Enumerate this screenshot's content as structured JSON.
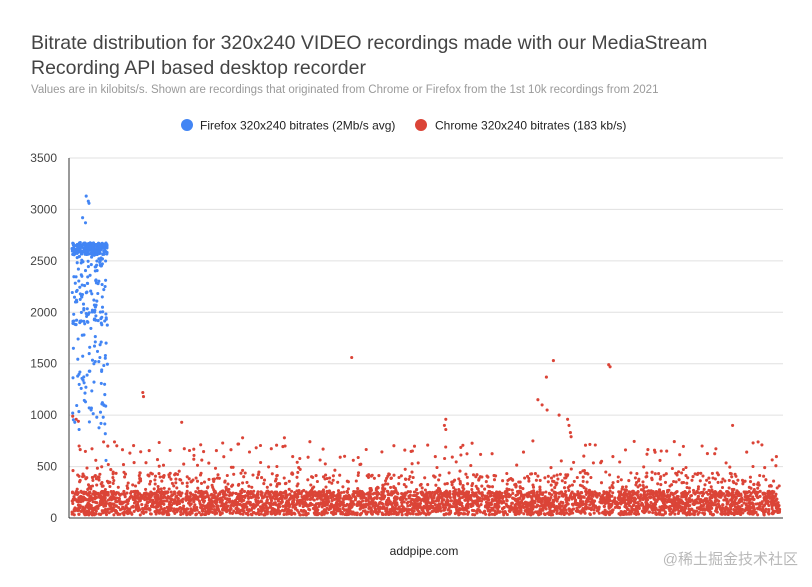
{
  "chart_data": {
    "type": "scatter",
    "title": "Bitrate distribution for 320x240 VIDEO recordings made with our MediaStream Recording API based desktop recorder",
    "subtitle": "Values are in kilobits/s. Shown are recordings that originated from Chrome or Firefox from the 1st 10k recordings from 2021",
    "xlabel": "addpipe.com",
    "ylabel": "",
    "ylim": [
      0,
      3500
    ],
    "yticks": [
      "0",
      "500",
      "1000",
      "1500",
      "2000",
      "2500",
      "3000",
      "3500"
    ],
    "grid": true,
    "legend_position": "top",
    "series": [
      {
        "name": "Firefox 320x240 bitrates (2Mb/s avg)",
        "color": "#4285f4",
        "x_range": [
          0,
          290
        ],
        "approx_count": 360,
        "points": [
          [
            20,
            3130
          ],
          [
            23,
            3080
          ],
          [
            24,
            3060
          ],
          [
            15,
            2920
          ],
          [
            19,
            2870
          ],
          [
            0,
            2620
          ],
          [
            6,
            2650
          ],
          [
            12,
            2630
          ],
          [
            18,
            2660
          ],
          [
            26,
            2640
          ],
          [
            30,
            2620
          ],
          [
            34,
            2660
          ],
          [
            40,
            2640
          ],
          [
            45,
            2630
          ],
          [
            3,
            2560
          ],
          [
            9,
            2420
          ],
          [
            14,
            2350
          ],
          [
            22,
            2280
          ],
          [
            28,
            2180
          ],
          [
            33,
            2050
          ],
          [
            38,
            2520
          ],
          [
            43,
            2470
          ],
          [
            5,
            2100
          ],
          [
            11,
            1900
          ],
          [
            17,
            1780
          ],
          [
            25,
            1660
          ],
          [
            31,
            1500
          ],
          [
            36,
            1620
          ],
          [
            42,
            1440
          ],
          [
            2,
            1650
          ],
          [
            8,
            1380
          ],
          [
            13,
            1260
          ],
          [
            19,
            1130
          ],
          [
            27,
            1050
          ],
          [
            35,
            980
          ],
          [
            41,
            920
          ],
          [
            45,
            1100
          ],
          [
            1,
            1020
          ],
          [
            4,
            930
          ],
          [
            10,
            860
          ],
          [
            44,
            980
          ],
          [
            46,
            1300
          ],
          [
            47,
            820
          ],
          [
            48,
            560
          ]
        ]
      },
      {
        "name": "Chrome 320x240 bitrates (183 kb/s)",
        "color": "#db4437",
        "x_range": [
          0,
          1000
        ],
        "approx_count": 4500,
        "typical_range": [
          20,
          420
        ],
        "points": [
          [
            395,
            1560
          ],
          [
            680,
            1530
          ],
          [
            670,
            1370
          ],
          [
            758,
            1490
          ],
          [
            760,
            1470
          ],
          [
            100,
            1220
          ],
          [
            101,
            1180
          ],
          [
            658,
            1150
          ],
          [
            664,
            1100
          ],
          [
            671,
            1050
          ],
          [
            688,
            1000
          ],
          [
            700,
            960
          ],
          [
            702,
            900
          ],
          [
            704,
            830
          ],
          [
            705,
            790
          ],
          [
            528,
            960
          ],
          [
            526,
            900
          ],
          [
            528,
            860
          ],
          [
            155,
            930
          ],
          [
            1,
            990
          ],
          [
            6,
            960
          ],
          [
            9,
            940
          ],
          [
            933,
            900
          ],
          [
            651,
            750
          ],
          [
            962,
            730
          ],
          [
            969,
            740
          ],
          [
            241,
            780
          ],
          [
            470,
            660
          ],
          [
            890,
            700
          ],
          [
            840,
            650
          ],
          [
            60,
            740
          ],
          [
            10,
            700
          ],
          [
            385,
            600
          ],
          [
            300,
            780
          ]
        ]
      }
    ],
    "x_caption": "addpipe.com"
  },
  "watermark": "@稀土掘金技术社区"
}
